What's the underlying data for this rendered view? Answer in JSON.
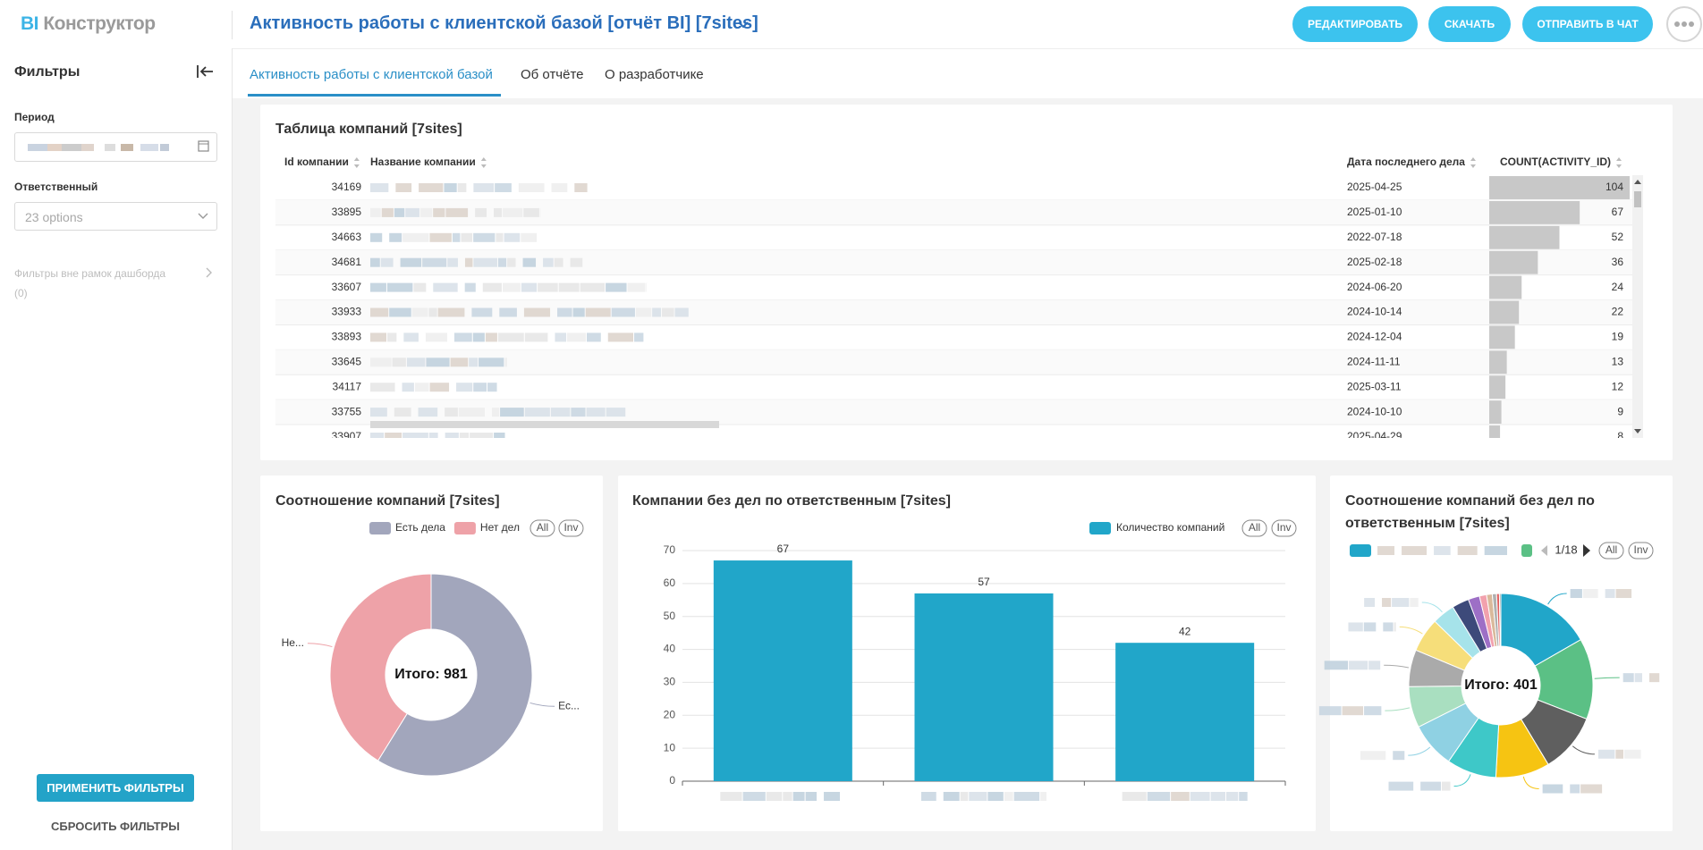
{
  "header": {
    "logo": {
      "brand": "BI",
      "name": "Конструктор"
    },
    "title": "Активность работы с клиентской базой [отчёт BI] [7sites]",
    "buttons": [
      "РЕДАКТИРОВАТЬ",
      "СКАЧАТЬ",
      "ОТПРАВИТЬ В ЧАТ"
    ]
  },
  "tabs": [
    "Активность работы с клиентской базой",
    "Об отчёте",
    "О разработчике"
  ],
  "sidebar": {
    "title": "Фильтры",
    "period_label": "Период",
    "responsible_label": "Ответственный",
    "responsible_value": "23 options",
    "outside_filters": "Фильтры вне рамок дашборда",
    "outside_count": "(0)",
    "apply": "ПРИМЕНИТЬ ФИЛЬТРЫ",
    "reset": "СБРОСИТЬ ФИЛЬТРЫ"
  },
  "table": {
    "title": "Таблица компаний [7sites]",
    "columns": [
      "Id компании",
      "Название компании",
      "Дата последнего дела",
      "COUNT(ACTIVITY_ID)"
    ],
    "bar_color": "#c8c8c8",
    "rows": [
      {
        "id": 34169,
        "date": "2025-04-25",
        "count": 104
      },
      {
        "id": 33895,
        "date": "2025-01-10",
        "count": 67
      },
      {
        "id": 34663,
        "date": "2022-07-18",
        "count": 52
      },
      {
        "id": 34681,
        "date": "2025-02-18",
        "count": 36
      },
      {
        "id": 33607,
        "date": "2024-06-20",
        "count": 24
      },
      {
        "id": 33933,
        "date": "2024-10-14",
        "count": 22
      },
      {
        "id": 33893,
        "date": "2024-12-04",
        "count": 19
      },
      {
        "id": 33645,
        "date": "2024-11-11",
        "count": 13
      },
      {
        "id": 34117,
        "date": "2025-03-11",
        "count": 12
      },
      {
        "id": 33755,
        "date": "2024-10-10",
        "count": 9
      },
      {
        "id": 33907,
        "date": "2025-04-29",
        "count": 8
      }
    ]
  },
  "charts": [
    {
      "type": "pie",
      "title": "Соотношение компаний [7sites]",
      "categories": [
        "Есть дела",
        "Нет дел"
      ],
      "values": [
        577,
        404
      ],
      "colors": [
        "#a2a6bc",
        "#eea2a8"
      ],
      "slice_labels": [
        "Ес...",
        "Не..."
      ],
      "total_label": "Итого: 981",
      "legend_buttons": [
        "All",
        "Inv"
      ]
    },
    {
      "type": "bar",
      "title": "Компании без дел по ответственным [7sites]",
      "categories": [
        null,
        null,
        null
      ],
      "series": [
        {
          "name": "Количество компаний",
          "color": "#21a6c9",
          "values": [
            67,
            57,
            42
          ]
        }
      ],
      "ylim": [
        0,
        70
      ],
      "yticks": [
        0,
        10,
        20,
        30,
        40,
        50,
        60,
        70
      ],
      "grid": true,
      "legend_buttons": [
        "All",
        "Inv"
      ]
    },
    {
      "type": "pie",
      "title": "Соотношение компаний без дел по ответственным [7sites]",
      "values": [
        67,
        57,
        42,
        38,
        35,
        32,
        29,
        26,
        24,
        16,
        12,
        8,
        5,
        4,
        3,
        2,
        1
      ],
      "colors": [
        "#21a6c9",
        "#5bc085",
        "#5f5f5f",
        "#f6c412",
        "#3ec8c8",
        "#8fd1e3",
        "#a9dfc0",
        "#aaaaaa",
        "#f6de7a",
        "#a6e3ea",
        "#3d4a7a",
        "#9d6fc6",
        "#f2a1ad",
        "#d9b99b",
        "#b0b0b0",
        "#e06060",
        "#7f8c8d"
      ],
      "total_label": "Итого: 401",
      "legend_page": "1/18",
      "legend_buttons": [
        "All",
        "Inv"
      ]
    }
  ]
}
